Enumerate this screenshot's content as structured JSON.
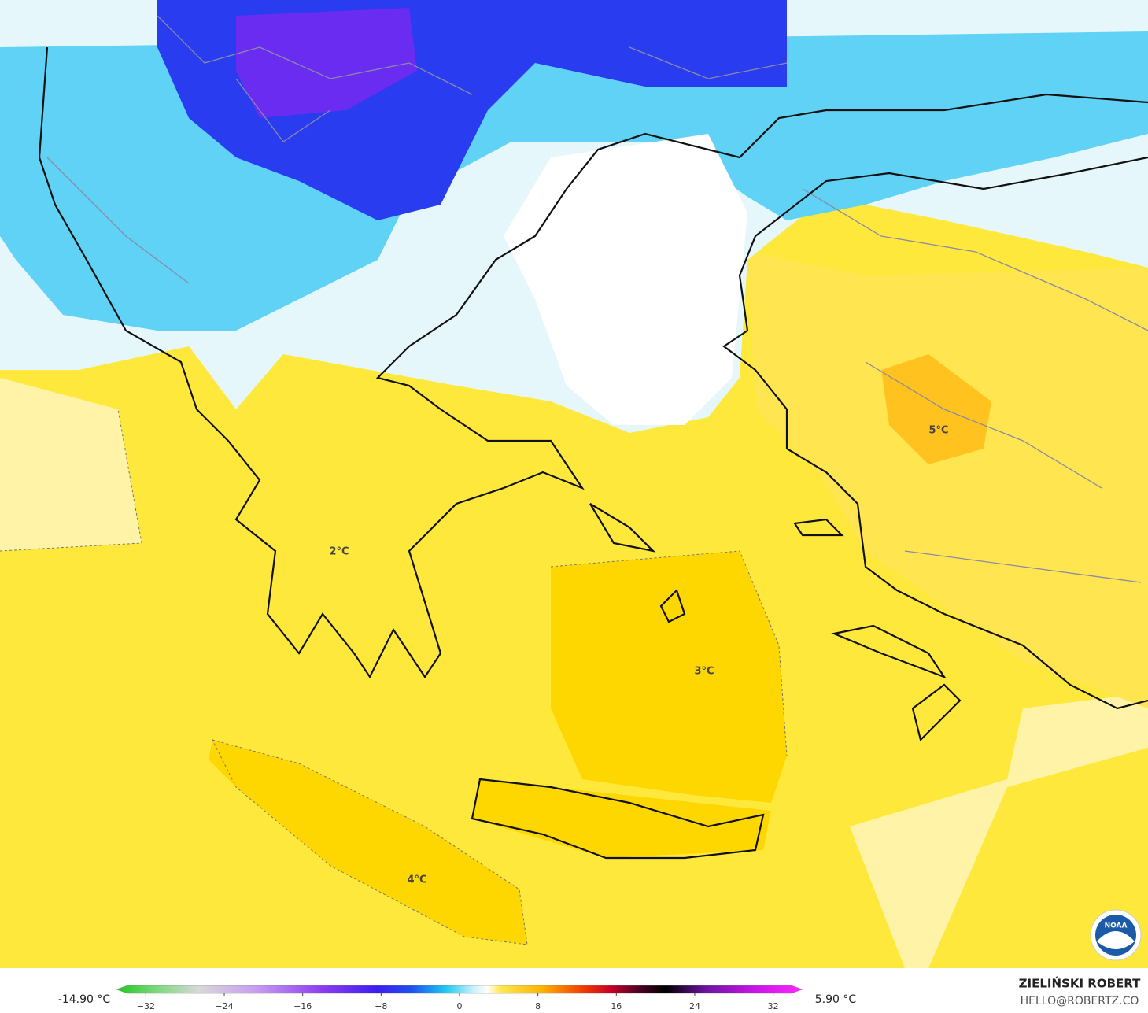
{
  "map": {
    "labels": [
      "5°C",
      "2°C",
      "3°C",
      "4°C"
    ]
  },
  "colorbar": {
    "min_label": "-14.90 °C",
    "max_label": "5.90 °C",
    "lim": [
      -35,
      35
    ],
    "ticks": [
      {
        "value": -32,
        "label": "−32"
      },
      {
        "value": -24,
        "label": "−24"
      },
      {
        "value": -16,
        "label": "−16"
      },
      {
        "value": -8,
        "label": "−8"
      },
      0,
      8,
      16,
      24,
      32
    ]
  },
  "credits": {
    "author": "ZIELIŃSKI ROBERT",
    "contact": "HELLO@ROBERTZ.CO",
    "logo": "NOAA"
  }
}
